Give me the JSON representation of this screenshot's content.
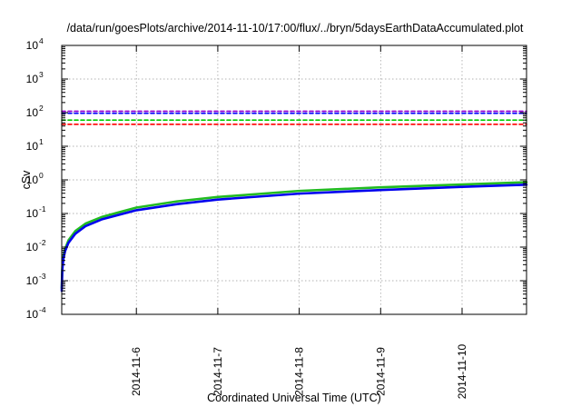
{
  "chart_data": {
    "type": "line",
    "title": "/data/run/goesPlots/archive/2014-11-10/17:00/flux/../bryn/5daysEarthDataAccumulated.plot",
    "xlabel": "Coordinated Universal Time (UTC)",
    "ylabel": "cSv",
    "y_scale": "log",
    "ylim": [
      0.0001,
      10000
    ],
    "xlim": [
      "2014-11-05T02:00",
      "2014-11-10T19:00"
    ],
    "grid": true,
    "legend": "none",
    "x_ticks": [
      "2014-11-6",
      "2014-11-7",
      "2014-11-8",
      "2014-11-9",
      "2014-11-10"
    ],
    "y_ticks": [
      {
        "value": 0.0001,
        "base": "10",
        "exp": "-4"
      },
      {
        "value": 0.001,
        "base": "10",
        "exp": "-3"
      },
      {
        "value": 0.01,
        "base": "10",
        "exp": "-2"
      },
      {
        "value": 0.1,
        "base": "10",
        "exp": "-1"
      },
      {
        "value": 1,
        "base": "10",
        "exp": "0"
      },
      {
        "value": 10,
        "base": "10",
        "exp": "1"
      },
      {
        "value": 100,
        "base": "10",
        "exp": "2"
      },
      {
        "value": 1000,
        "base": "10",
        "exp": "3"
      },
      {
        "value": 10000,
        "base": "10",
        "exp": "4"
      }
    ],
    "series": [
      {
        "style": "dashed",
        "color": "#9400d3",
        "x": [
          "2014-11-05T02:00",
          "2014-11-10T19:00"
        ],
        "y": [
          110,
          110
        ]
      },
      {
        "style": "dashed",
        "color": "#0000ff",
        "x": [
          "2014-11-05T02:00",
          "2014-11-10T19:00"
        ],
        "y": [
          96,
          96
        ]
      },
      {
        "style": "dashed",
        "color": "#00cc00",
        "x": [
          "2014-11-05T02:00",
          "2014-11-10T19:00"
        ],
        "y": [
          60,
          60
        ]
      },
      {
        "style": "dashed",
        "color": "#ff0000",
        "x": [
          "2014-11-05T02:00",
          "2014-11-10T19:00"
        ],
        "y": [
          45,
          45
        ]
      },
      {
        "style": "solid",
        "color": "#22bb22",
        "x": [
          "2014-11-05T02:00",
          "2014-11-05T02:10",
          "2014-11-05T02:30",
          "2014-11-05T03:00",
          "2014-11-05T04:00",
          "2014-11-05T06:00",
          "2014-11-05T09:00",
          "2014-11-05T14:00",
          "2014-11-06T00:00",
          "2014-11-06T12:00",
          "2014-11-07T00:00",
          "2014-11-08T00:00",
          "2014-11-09T00:00",
          "2014-11-10T00:00",
          "2014-11-10T19:00"
        ],
        "y": [
          0.0006,
          0.0025,
          0.0055,
          0.009,
          0.016,
          0.03,
          0.05,
          0.08,
          0.15,
          0.23,
          0.31,
          0.47,
          0.6,
          0.73,
          0.85
        ]
      },
      {
        "style": "solid",
        "color": "#0000ee",
        "x": [
          "2014-11-05T02:00",
          "2014-11-05T02:10",
          "2014-11-05T02:30",
          "2014-11-05T03:00",
          "2014-11-05T04:00",
          "2014-11-05T06:00",
          "2014-11-05T09:00",
          "2014-11-05T14:00",
          "2014-11-06T00:00",
          "2014-11-06T12:00",
          "2014-11-07T00:00",
          "2014-11-08T00:00",
          "2014-11-09T00:00",
          "2014-11-10T00:00",
          "2014-11-10T19:00"
        ],
        "y": [
          0.0005,
          0.0021,
          0.0046,
          0.0077,
          0.0135,
          0.025,
          0.042,
          0.068,
          0.125,
          0.19,
          0.26,
          0.39,
          0.5,
          0.62,
          0.72
        ]
      }
    ]
  }
}
